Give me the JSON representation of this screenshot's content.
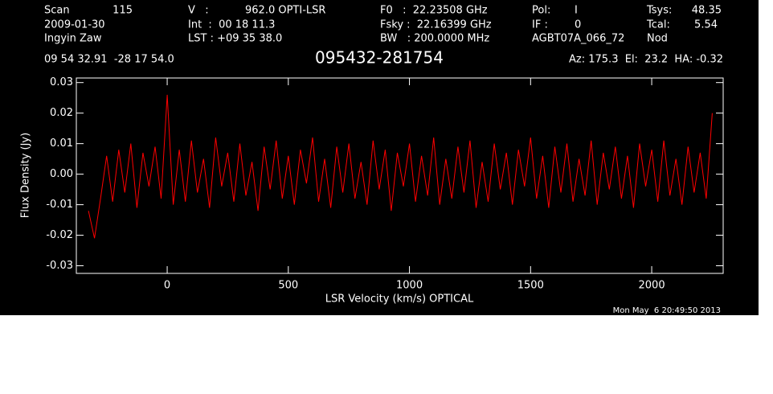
{
  "chart_data": {
    "type": "line",
    "header": {
      "scan_label": "Scan",
      "scan": "115",
      "date": "2009-01-30",
      "observer": "Ingyin Zaw",
      "v_label": "V   :",
      "v": "962.0 OPTI-LSR",
      "int": "Int  :  00 18 11.3",
      "lst": "LST : +09 35 38.0",
      "f0": "F0   :  22.23508 GHz",
      "fsky": "Fsky :  22.16399 GHz",
      "bw": "BW   : 200.0000 MHz",
      "pol_label": "Pol:",
      "pol": "I",
      "if_label": "IF :",
      "if": "0",
      "project": "AGBT07A_066_72",
      "tsys_label": "Tsys:",
      "tsys": "48.35",
      "tcal_label": "Tcal:",
      "tcal": "5.54",
      "mode": "Nod",
      "coords": "09 54 32.91  -28 17 54.0",
      "azel": "Az: 175.3  El:  23.2  HA: -0.32"
    },
    "title": "095432-281754",
    "xlabel": "LSR Velocity (km/s) OPTICAL",
    "ylabel": "Flux Density (Jy)",
    "timestamp": "Mon May  6 20:49:50 2013",
    "xlim": [
      -375,
      2295
    ],
    "ylim": [
      -0.0325,
      0.0315
    ],
    "xticks": [
      0,
      500,
      1000,
      1500,
      2000
    ],
    "yticks": [
      0.03,
      0.02,
      0.01,
      {
        "value": 0,
        "label": "0.00"
      },
      -0.01,
      -0.02,
      -0.03
    ],
    "x": [
      -325,
      -300,
      -275,
      -250,
      -225,
      -200,
      -175,
      -150,
      -125,
      -100,
      -75,
      -50,
      -25,
      0,
      25,
      50,
      75,
      100,
      125,
      150,
      175,
      200,
      225,
      250,
      275,
      300,
      325,
      350,
      375,
      400,
      425,
      450,
      475,
      500,
      525,
      550,
      575,
      600,
      625,
      650,
      675,
      700,
      725,
      750,
      775,
      800,
      825,
      850,
      875,
      900,
      925,
      950,
      975,
      1000,
      1025,
      1050,
      1075,
      1100,
      1125,
      1150,
      1175,
      1200,
      1225,
      1250,
      1275,
      1300,
      1325,
      1350,
      1375,
      1400,
      1425,
      1450,
      1475,
      1500,
      1525,
      1550,
      1575,
      1600,
      1625,
      1650,
      1675,
      1700,
      1725,
      1750,
      1775,
      1800,
      1825,
      1850,
      1875,
      1900,
      1925,
      1950,
      1975,
      2000,
      2025,
      2050,
      2075,
      2100,
      2125,
      2150,
      2175,
      2200,
      2225,
      2250
    ],
    "series": [
      {
        "color": "#ff0000",
        "values": [
          -0.012,
          -0.021,
          -0.008,
          0.006,
          -0.009,
          0.008,
          -0.006,
          0.01,
          -0.011,
          0.007,
          -0.004,
          0.009,
          -0.008,
          0.026,
          -0.01,
          0.008,
          -0.009,
          0.011,
          -0.006,
          0.005,
          -0.011,
          0.012,
          -0.004,
          0.007,
          -0.009,
          0.01,
          -0.007,
          0.004,
          -0.012,
          0.009,
          -0.005,
          0.011,
          -0.008,
          0.006,
          -0.01,
          0.008,
          -0.003,
          0.012,
          -0.009,
          0.005,
          -0.011,
          0.009,
          -0.006,
          0.01,
          -0.008,
          0.004,
          -0.01,
          0.011,
          -0.005,
          0.008,
          -0.012,
          0.007,
          -0.004,
          0.01,
          -0.009,
          0.006,
          -0.007,
          0.012,
          -0.01,
          0.005,
          -0.008,
          0.009,
          -0.006,
          0.011,
          -0.011,
          0.004,
          -0.009,
          0.01,
          -0.005,
          0.007,
          -0.01,
          0.008,
          -0.004,
          0.012,
          -0.008,
          0.006,
          -0.011,
          0.009,
          -0.006,
          0.01,
          -0.009,
          0.005,
          -0.007,
          0.011,
          -0.01,
          0.007,
          -0.005,
          0.009,
          -0.008,
          0.006,
          -0.011,
          0.01,
          -0.004,
          0.008,
          -0.009,
          0.011,
          -0.007,
          0.005,
          -0.01,
          0.009,
          -0.006,
          0.007,
          -0.008,
          0.02
        ]
      }
    ]
  }
}
